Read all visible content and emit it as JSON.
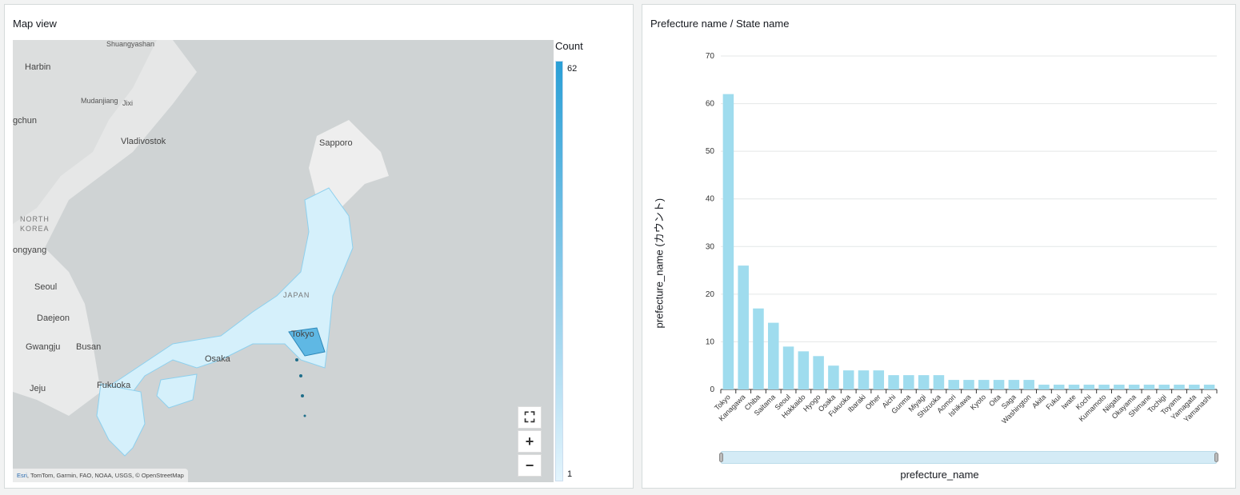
{
  "map_panel": {
    "title": "Map view",
    "labels": {
      "shuangyashan": "Shuangyashan",
      "harbin": "Harbin",
      "jixi": "Jixi",
      "mudanjiang": "Mudanjiang",
      "changchun": "gchun",
      "vladivostok": "Vladivostok",
      "sapporo": "Sapporo",
      "north_korea_1": "NORTH",
      "north_korea_2": "KOREA",
      "pyongyang": "ongyang",
      "seoul": "Seoul",
      "daejeon": "Daejeon",
      "gwangju": "Gwangju",
      "busan": "Busan",
      "jeju": "Jeju",
      "fukuoka": "Fukuoka",
      "osaka": "Osaka",
      "tokyo": "Tokyo",
      "japan": "JAPAN"
    },
    "attribution_esri": "Esri",
    "attribution_rest": ", TomTom, Garmin, FAO, NOAA, USGS, © OpenStreetMap",
    "controls": {
      "locate": "⛶",
      "zoom_in": "+",
      "zoom_out": "−"
    },
    "legend": {
      "title": "Count",
      "max": "62",
      "min": "1",
      "color_max": "#2a9fd6",
      "color_min": "#e3f4fc"
    }
  },
  "chart_panel": {
    "title": "Prefecture name / State name"
  },
  "chart_data": {
    "type": "bar",
    "title": "Prefecture name / State name",
    "xlabel": "prefecture_name",
    "ylabel": "prefecture_name (カウント)",
    "ylim": [
      0,
      70
    ],
    "yticks": [
      0,
      10,
      20,
      30,
      40,
      50,
      60,
      70
    ],
    "grid": true,
    "bar_color": "#9fdcee",
    "categories": [
      "Tokyo",
      "Kanagawa",
      "Chiba",
      "Saitama",
      "Seoul",
      "Hokkaido",
      "Hyogo",
      "Osaka",
      "Fukuoka",
      "Ibaraki",
      "Other",
      "Aichi",
      "Gunma",
      "Miyagi",
      "Shizuoka",
      "Aomori",
      "Ishikawa",
      "Kyoto",
      "Oita",
      "Saga",
      "Washington",
      "Akita",
      "Fukui",
      "Iwate",
      "Kochi",
      "Kumamoto",
      "Niigata",
      "Okayama",
      "Shimane",
      "Tochigi",
      "Toyama",
      "Yamagata",
      "Yamanashi"
    ],
    "values": [
      62,
      26,
      17,
      14,
      9,
      8,
      7,
      5,
      4,
      4,
      4,
      3,
      3,
      3,
      3,
      2,
      2,
      2,
      2,
      2,
      2,
      1,
      1,
      1,
      1,
      1,
      1,
      1,
      1,
      1,
      1,
      1,
      1
    ]
  }
}
